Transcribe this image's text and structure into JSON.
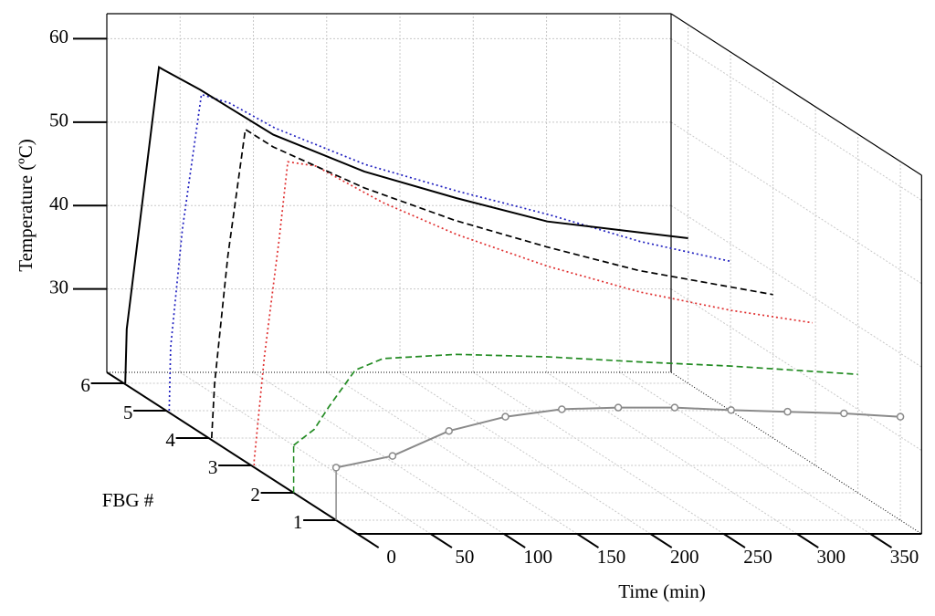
{
  "chart_data": {
    "type": "line3d",
    "xlabel": "Time (min)",
    "ylabel": "FBG #",
    "zlabel": "Temperature (ºC)",
    "xlim": [
      0,
      385
    ],
    "xticks": [
      0,
      50,
      100,
      150,
      200,
      250,
      300,
      350
    ],
    "ylim": [
      0.5,
      6.4
    ],
    "yticks": [
      1,
      2,
      3,
      4,
      5,
      6
    ],
    "zlim": [
      20,
      63
    ],
    "zticks": [
      30,
      40,
      50,
      60
    ],
    "grid": true,
    "series": [
      {
        "fbg": 1,
        "color": "#8a8a8a",
        "dash": "solid",
        "markers": true,
        "x": [
          0,
          38.5,
          77,
          115.5,
          154,
          192.5,
          231,
          269.5,
          308,
          346.5,
          385
        ],
        "values": [
          26.3,
          27.7,
          30.7,
          32.4,
          33.3,
          33.5,
          33.5,
          33.2,
          33.0,
          32.8,
          32.4
        ]
      },
      {
        "fbg": 2,
        "color": "#228b22",
        "dash": "dashed",
        "markers": false,
        "x": [
          0,
          14,
          24,
          42,
          61,
          111,
          173,
          235,
          298,
          385
        ],
        "values": [
          25.7,
          27.6,
          30.3,
          34.7,
          36.1,
          36.6,
          36.3,
          35.7,
          35.2,
          34.2
        ]
      },
      {
        "fbg": 3,
        "color": "#e03030",
        "dash": "dotted",
        "markers": false,
        "x": [
          2,
          9,
          19,
          25,
          44,
          90,
          140,
          202,
          265,
          327,
          383
        ],
        "values": [
          20.5,
          33,
          47,
          56.4,
          55.9,
          51.5,
          47.7,
          43.9,
          40.8,
          38.6,
          37.1
        ]
      },
      {
        "fbg": 4,
        "color": "#000000",
        "dash": "dashed",
        "markers": false,
        "x": [
          2,
          4,
          13,
          25,
          44,
          106,
          168,
          231,
          293,
          385
        ],
        "values": [
          20,
          26.5,
          41.8,
          57,
          54.9,
          50,
          46.1,
          42.9,
          40.1,
          37.2
        ]
      },
      {
        "fbg": 5,
        "color": "#2020c0",
        "dash": "dotted",
        "markers": false,
        "x": [
          2,
          3,
          11,
          24,
          43,
          74,
          136,
          199,
          261,
          323,
          385
        ],
        "values": [
          20,
          27.6,
          41.8,
          57.9,
          56.9,
          53.9,
          49.5,
          46.3,
          43.5,
          40.3,
          37.9
        ]
      },
      {
        "fbg": 6,
        "color": "#000000",
        "dash": "solid",
        "markers": false,
        "x": [
          1,
          2,
          24,
          27,
          52,
          102,
          164,
          227,
          289,
          385
        ],
        "values": [
          20,
          26.5,
          57.9,
          57.6,
          55.2,
          49.8,
          45.4,
          42.2,
          39.4,
          37.4
        ]
      }
    ]
  }
}
